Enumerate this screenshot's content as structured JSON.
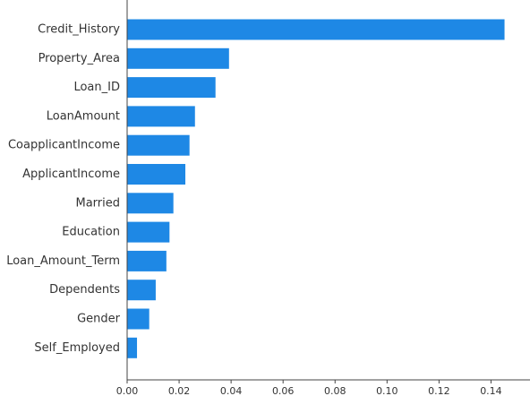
{
  "chart_data": {
    "type": "bar",
    "orientation": "horizontal",
    "categories": [
      "Credit_History",
      "Property_Area",
      "Loan_ID",
      "LoanAmount",
      "CoapplicantIncome",
      "ApplicantIncome",
      "Married",
      "Education",
      "Loan_Amount_Term",
      "Dependents",
      "Gender",
      "Self_Employed"
    ],
    "values": [
      0.1452,
      0.0392,
      0.034,
      0.0261,
      0.024,
      0.0224,
      0.0178,
      0.0163,
      0.0151,
      0.011,
      0.0085,
      0.0038
    ],
    "title": "",
    "xlabel": "",
    "ylabel": "",
    "xlim": [
      0.0,
      0.155
    ],
    "xticks": [
      0.0,
      0.02,
      0.04,
      0.06,
      0.08,
      0.1,
      0.12,
      0.14
    ],
    "xtick_labels": [
      "0.00",
      "0.02",
      "0.04",
      "0.06",
      "0.08",
      "0.10",
      "0.12",
      "0.14"
    ],
    "bar_color": "#1e88e5",
    "grid": false,
    "legend": "none"
  }
}
